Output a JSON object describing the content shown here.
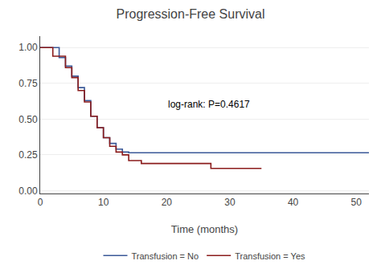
{
  "chart_data": {
    "type": "line",
    "title": "Progression-Free Survival",
    "x_label": "Time (months)",
    "annotations": [
      {
        "text": "log-rank: P=0.4617",
        "x": 20,
        "y": 0.55
      }
    ],
    "xlim": [
      0,
      52
    ],
    "ylim": [
      -0.02,
      1.08
    ],
    "xticks": [
      0,
      10,
      20,
      30,
      40,
      50
    ],
    "yticks": [
      {
        "value": 0.0,
        "label": "0.00"
      },
      {
        "value": 0.25,
        "label": "0.25"
      },
      {
        "value": 0.5,
        "label": "0.50"
      },
      {
        "value": 0.75,
        "label": "0.75"
      },
      {
        "value": 1.0,
        "label": "1.00"
      }
    ],
    "grid": "y",
    "legend": "bottom",
    "series": [
      {
        "name": "Transfusion = No",
        "color": "#3b5998",
        "x": [
          0,
          3,
          3,
          4,
          4,
          5,
          5,
          6,
          6,
          7,
          7,
          8,
          8,
          9,
          9,
          10,
          10,
          11,
          11,
          12,
          12,
          13,
          13,
          14,
          14,
          52
        ],
        "values": [
          1.0,
          1.0,
          0.93,
          0.93,
          0.87,
          0.87,
          0.8,
          0.8,
          0.72,
          0.72,
          0.63,
          0.63,
          0.52,
          0.52,
          0.44,
          0.44,
          0.37,
          0.37,
          0.33,
          0.33,
          0.29,
          0.29,
          0.27,
          0.27,
          0.265,
          0.265
        ]
      },
      {
        "name": "Transfusion = Yes",
        "color": "#8b1c1c",
        "x": [
          0,
          2,
          2,
          4,
          4,
          5,
          5,
          6,
          6,
          7,
          7,
          8,
          8,
          9,
          9,
          10,
          10,
          11,
          11,
          12,
          12,
          13,
          13,
          14,
          14,
          16,
          16,
          27,
          27,
          35,
          35
        ],
        "values": [
          1.0,
          1.0,
          0.94,
          0.94,
          0.86,
          0.86,
          0.79,
          0.79,
          0.7,
          0.7,
          0.62,
          0.62,
          0.52,
          0.52,
          0.44,
          0.44,
          0.37,
          0.37,
          0.31,
          0.31,
          0.27,
          0.27,
          0.25,
          0.25,
          0.21,
          0.21,
          0.19,
          0.19,
          0.155,
          0.155,
          0.155
        ]
      }
    ]
  }
}
